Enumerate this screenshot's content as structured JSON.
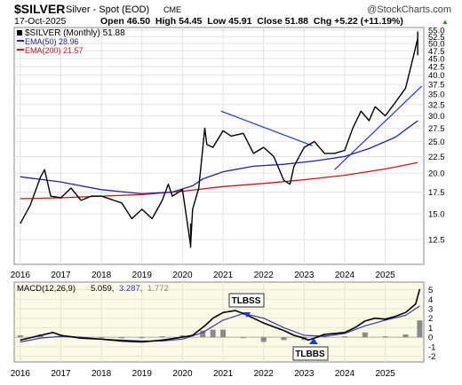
{
  "header": {
    "symbol": "$SILVER",
    "description": "Silver - Spot (EOD)",
    "exchange": "CME",
    "watermark": "@StockCharts.com",
    "date": "17-Oct-2025",
    "ohlc": "Open 46.50  High 54.45  Low 45.91  Close 51.88  Chg +5.22 (+11.19%)",
    "ohlc_arrow": "▲"
  },
  "legend": {
    "main": "$SILVER (Monthly) 51.88",
    "ema50": "EMA(50) 28.96",
    "ema200": "EMA(200) 21.57"
  },
  "macd_legend": {
    "label": "MACD(12,26,9)",
    "macd": "5.059,",
    "signal": "3.287,",
    "hist": "1.772"
  },
  "annotations": {
    "tlbss": "TLBSS",
    "tlbbs": "TLBBS"
  },
  "colors": {
    "price": "#000000",
    "ema50": "#2222aa",
    "ema200": "#c01818",
    "trendline": "#2233cc",
    "panel_bg": "#fafae6",
    "macd_line": "#000000",
    "signal_line": "#3a3aa0",
    "histogram": "#8a8a8a"
  },
  "chart_data": [
    {
      "type": "line",
      "title": "$SILVER Silver - Spot (EOD) CME",
      "x_ticks": [
        "2016",
        "2017",
        "2018",
        "2019",
        "2020",
        "2021",
        "2022",
        "2023",
        "2024",
        "2025"
      ],
      "y_ticks": [
        12.5,
        15.0,
        17.5,
        20.0,
        22.5,
        25.0,
        27.5,
        30.0,
        32.5,
        35.0,
        37.5,
        40.0,
        42.5,
        45.0,
        47.5,
        50.0,
        52.5,
        55.0
      ],
      "ylim": [
        10.5,
        56
      ],
      "xlim": [
        2015.85,
        2025.95
      ],
      "scale": "log",
      "series": [
        {
          "name": "$SILVER (Monthly)",
          "x": [
            2016.0,
            2016.25,
            2016.5,
            2016.6,
            2016.75,
            2017.0,
            2017.25,
            2017.5,
            2017.75,
            2018.0,
            2018.5,
            2018.75,
            2019.0,
            2019.25,
            2019.5,
            2019.65,
            2019.75,
            2020.0,
            2020.2,
            2020.25,
            2020.4,
            2020.55,
            2020.6,
            2020.75,
            2021.0,
            2021.2,
            2021.5,
            2021.75,
            2022.0,
            2022.25,
            2022.5,
            2022.65,
            2022.75,
            2023.0,
            2023.25,
            2023.5,
            2023.75,
            2024.0,
            2024.2,
            2024.4,
            2024.6,
            2024.75,
            2025.0,
            2025.25,
            2025.5,
            2025.7,
            2025.8
          ],
          "values": [
            14.0,
            16.0,
            19.5,
            20.5,
            17.0,
            16.8,
            18.0,
            16.5,
            17.0,
            17.0,
            16.2,
            14.5,
            15.5,
            14.5,
            16.5,
            18.5,
            17.0,
            17.8,
            12.0,
            15.5,
            18.0,
            27.5,
            24.5,
            24.0,
            27.0,
            26.0,
            26.5,
            23.0,
            24.0,
            22.5,
            19.0,
            18.5,
            21.0,
            24.0,
            25.0,
            23.0,
            23.0,
            23.5,
            27.5,
            31.0,
            29.0,
            32.0,
            30.0,
            33.0,
            36.5,
            46.0,
            51.88
          ],
          "high": 54.45,
          "low": 11.8
        },
        {
          "name": "EMA(50)",
          "x": [
            2016.0,
            2017.0,
            2018.0,
            2019.0,
            2019.75,
            2020.25,
            2020.5,
            2021.0,
            2021.75,
            2022.5,
            2023.25,
            2024.0,
            2024.6,
            2025.25,
            2025.8
          ],
          "values": [
            19.5,
            18.8,
            17.8,
            17.3,
            17.5,
            18.3,
            19.2,
            20.2,
            21.0,
            21.3,
            21.8,
            22.5,
            23.8,
            25.8,
            28.96
          ]
        },
        {
          "name": "EMA(200)",
          "x": [
            2016.0,
            2017.0,
            2018.0,
            2019.0,
            2020.0,
            2021.0,
            2022.0,
            2023.0,
            2024.0,
            2025.0,
            2025.8
          ],
          "values": [
            16.7,
            16.8,
            17.0,
            17.2,
            17.6,
            18.2,
            18.6,
            19.1,
            19.7,
            20.6,
            21.57
          ]
        }
      ],
      "trendlines": [
        {
          "x": [
            2020.95,
            2023.2
          ],
          "values": [
            31.0,
            24.3
          ]
        },
        {
          "x": [
            2023.75,
            2025.9
          ],
          "values": [
            20.5,
            37.0
          ]
        }
      ]
    },
    {
      "type": "line",
      "title": "MACD(12,26,9)",
      "x_ticks": [
        "2016",
        "2017",
        "2018",
        "2019",
        "2020",
        "2021",
        "2022",
        "2023",
        "2024",
        "2025"
      ],
      "y_ticks": [
        -2,
        -1,
        0,
        1,
        2,
        3,
        4,
        5
      ],
      "ylim": [
        -2.6,
        5.8
      ],
      "xlim": [
        2015.85,
        2025.95
      ],
      "series": [
        {
          "name": "MACD",
          "x": [
            2016.0,
            2016.5,
            2016.8,
            2017.0,
            2017.5,
            2018.0,
            2018.5,
            2019.0,
            2019.5,
            2020.0,
            2020.25,
            2020.55,
            2020.75,
            2021.0,
            2021.3,
            2021.5,
            2021.75,
            2022.0,
            2022.5,
            2022.75,
            2023.0,
            2023.1,
            2023.25,
            2023.5,
            2023.75,
            2024.0,
            2024.25,
            2024.5,
            2024.75,
            2025.0,
            2025.25,
            2025.5,
            2025.75,
            2025.85
          ],
          "values": [
            -0.3,
            0.2,
            0.5,
            0.2,
            -0.1,
            -0.2,
            -0.4,
            -0.5,
            -0.3,
            0.0,
            0.2,
            1.2,
            2.0,
            2.6,
            2.8,
            2.5,
            2.0,
            1.5,
            0.7,
            0.2,
            -0.1,
            -0.3,
            -0.1,
            0.3,
            0.4,
            0.5,
            1.0,
            1.7,
            2.0,
            1.9,
            2.2,
            2.6,
            3.5,
            5.06
          ]
        },
        {
          "name": "Signal",
          "x": [
            2016.0,
            2016.5,
            2017.0,
            2017.5,
            2018.0,
            2018.5,
            2019.0,
            2019.5,
            2020.0,
            2020.5,
            2021.0,
            2021.5,
            2022.0,
            2022.5,
            2023.0,
            2023.5,
            2024.0,
            2024.5,
            2025.0,
            2025.5,
            2025.85
          ],
          "values": [
            -0.5,
            -0.1,
            0.1,
            0.0,
            -0.2,
            -0.3,
            -0.4,
            -0.4,
            -0.2,
            0.5,
            1.8,
            2.5,
            2.0,
            1.0,
            0.2,
            0.1,
            0.4,
            1.2,
            1.8,
            2.3,
            3.29
          ]
        }
      ],
      "histogram": {
        "x": [
          2016.0,
          2016.5,
          2017.0,
          2017.5,
          2018.0,
          2018.5,
          2019.0,
          2019.5,
          2020.0,
          2020.5,
          2020.75,
          2021.0,
          2021.5,
          2022.0,
          2022.5,
          2023.0,
          2023.5,
          2024.0,
          2024.5,
          2025.0,
          2025.5,
          2025.85
        ],
        "values": [
          0.2,
          0.3,
          0.1,
          -0.1,
          0.0,
          -0.1,
          -0.1,
          0.1,
          0.2,
          0.7,
          0.8,
          0.8,
          0.0,
          -0.5,
          -0.3,
          -0.3,
          0.2,
          0.1,
          0.5,
          0.1,
          0.3,
          1.77
        ]
      }
    }
  ]
}
